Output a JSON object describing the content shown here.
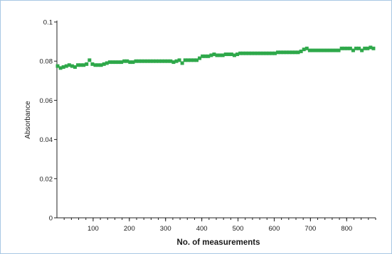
{
  "chart_data": {
    "type": "scatter",
    "title": "",
    "xlabel": "No. of measurements",
    "ylabel": "Absorbance",
    "xlim": [
      0,
      880
    ],
    "ylim": [
      0,
      0.1
    ],
    "x_ticks": [
      100,
      200,
      300,
      400,
      500,
      600,
      700,
      800
    ],
    "y_ticks": [
      0,
      0.02,
      0.04,
      0.06,
      0.08,
      0.1
    ],
    "y_tick_labels": [
      "0",
      "0.02",
      "0.04",
      "0.06",
      "0.08",
      "0.1"
    ],
    "grid": false,
    "marker_color": "#2ea84a",
    "series": [
      {
        "x": [
          2,
          10,
          18,
          26,
          34,
          42,
          50,
          58,
          66,
          74,
          82,
          90,
          98,
          106,
          114,
          122,
          130,
          138,
          146,
          154,
          162,
          170,
          178,
          186,
          194,
          202,
          210,
          218,
          226,
          234,
          242,
          250,
          258,
          266,
          274,
          282,
          290,
          298,
          306,
          314,
          322,
          330,
          338,
          346,
          354,
          362,
          370,
          378,
          386,
          394,
          402,
          410,
          418,
          426,
          434,
          442,
          450,
          458,
          466,
          474,
          482,
          490,
          498,
          506,
          514,
          522,
          530,
          538,
          546,
          554,
          562,
          570,
          578,
          586,
          594,
          602,
          610,
          618,
          626,
          634,
          642,
          650,
          658,
          666,
          674,
          682,
          690,
          698,
          706,
          714,
          722,
          730,
          738,
          746,
          754,
          762,
          770,
          778,
          786,
          794,
          802,
          810,
          818,
          826,
          834,
          842,
          850,
          858,
          866,
          874
        ],
        "y": [
          0.0775,
          0.0765,
          0.077,
          0.0775,
          0.078,
          0.0775,
          0.077,
          0.078,
          0.078,
          0.078,
          0.0785,
          0.0805,
          0.0785,
          0.078,
          0.078,
          0.078,
          0.0785,
          0.079,
          0.0795,
          0.0795,
          0.0795,
          0.0795,
          0.0795,
          0.08,
          0.08,
          0.0795,
          0.0795,
          0.08,
          0.08,
          0.08,
          0.08,
          0.08,
          0.08,
          0.08,
          0.08,
          0.08,
          0.08,
          0.08,
          0.08,
          0.08,
          0.0795,
          0.08,
          0.0805,
          0.079,
          0.0805,
          0.0805,
          0.0805,
          0.0805,
          0.0805,
          0.0815,
          0.0825,
          0.0825,
          0.0825,
          0.083,
          0.0835,
          0.083,
          0.083,
          0.083,
          0.0835,
          0.0835,
          0.0835,
          0.083,
          0.0835,
          0.084,
          0.084,
          0.084,
          0.084,
          0.084,
          0.084,
          0.084,
          0.084,
          0.084,
          0.084,
          0.084,
          0.084,
          0.084,
          0.0845,
          0.0845,
          0.0845,
          0.0845,
          0.0845,
          0.0845,
          0.0845,
          0.0845,
          0.085,
          0.086,
          0.0865,
          0.0855,
          0.0855,
          0.0855,
          0.0855,
          0.0855,
          0.0855,
          0.0855,
          0.0855,
          0.0855,
          0.0855,
          0.0855,
          0.0865,
          0.0865,
          0.0865,
          0.0865,
          0.0855,
          0.0865,
          0.0865,
          0.0855,
          0.0865,
          0.0865,
          0.087,
          0.0865
        ]
      }
    ]
  }
}
